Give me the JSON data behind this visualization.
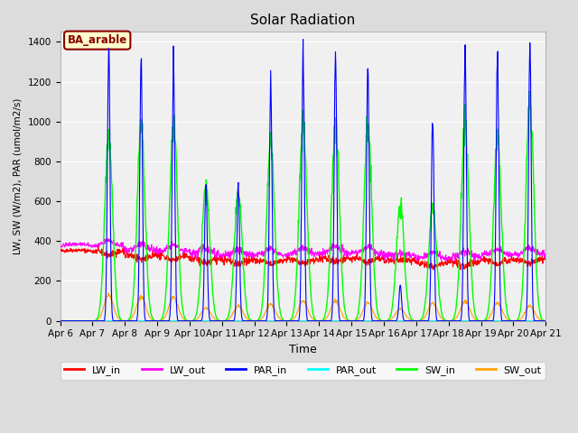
{
  "title": "Solar Radiation",
  "ylabel": "LW, SW (W/m2), PAR (umol/m2/s)",
  "xlabel": "Time",
  "annotation": "BA_arable",
  "annotation_color": "#8B0000",
  "annotation_bg": "#FFFFCC",
  "annotation_border": "#8B0000",
  "ylim": [
    0,
    1450
  ],
  "yticks": [
    0,
    200,
    400,
    600,
    800,
    1000,
    1200,
    1400
  ],
  "n_days": 15,
  "start_day": 6,
  "legend_colors": {
    "LW_in": "#FF0000",
    "LW_out": "#FF00FF",
    "PAR_in": "#0000FF",
    "PAR_out": "#00FFFF",
    "SW_in": "#00FF00",
    "SW_out": "#FFA500"
  },
  "bg_color": "#DCDCDC",
  "plot_bg": "#F0F0F0",
  "grid_color": "#FFFFFF",
  "line_width": 0.8,
  "day_conditions": [
    [
      350,
      5,
      0,
      0,
      0,
      0
    ],
    [
      350,
      8,
      1380,
      950,
      130,
      0
    ],
    [
      330,
      10,
      1300,
      970,
      120,
      0
    ],
    [
      325,
      8,
      1300,
      970,
      120,
      0
    ],
    [
      310,
      12,
      690,
      680,
      65,
      0
    ],
    [
      305,
      10,
      680,
      650,
      75,
      0
    ],
    [
      305,
      8,
      1200,
      890,
      85,
      0
    ],
    [
      310,
      8,
      1330,
      980,
      100,
      0
    ],
    [
      315,
      10,
      1340,
      990,
      100,
      0
    ],
    [
      315,
      8,
      1320,
      980,
      90,
      0
    ],
    [
      300,
      10,
      180,
      580,
      60,
      0
    ],
    [
      290,
      8,
      1010,
      580,
      90,
      0
    ],
    [
      295,
      10,
      1350,
      980,
      100,
      0
    ],
    [
      305,
      8,
      1360,
      910,
      90,
      0
    ],
    [
      310,
      8,
      1380,
      1100,
      75,
      0
    ]
  ]
}
